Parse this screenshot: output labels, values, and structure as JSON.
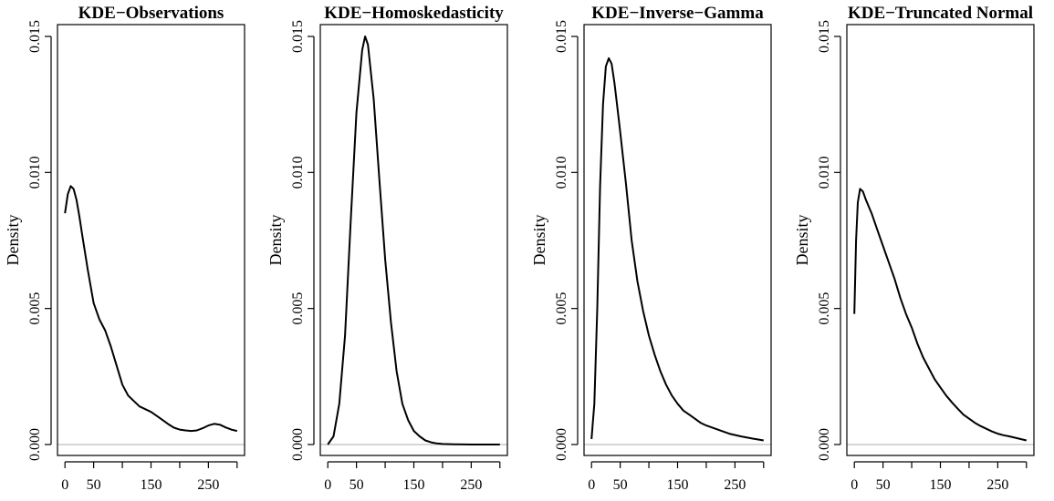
{
  "chart_data": [
    {
      "type": "line",
      "title": "KDE−Observations",
      "xlabel": "",
      "ylabel": "Density",
      "xlim": [
        0,
        300
      ],
      "ylim": [
        0,
        0.015
      ],
      "xticks": [
        0,
        50,
        150,
        250
      ],
      "xtick_labels": [
        "0",
        "50",
        "150",
        "250"
      ],
      "xtick_marks": [
        0,
        50,
        100,
        150,
        200,
        250,
        300
      ],
      "yticks": [
        0,
        0.005,
        0.01,
        0.015
      ],
      "ytick_labels": [
        "0.000",
        "0.005",
        "0.010",
        "0.015"
      ],
      "grid": false,
      "series": [
        {
          "x": [
            0,
            5,
            10,
            15,
            20,
            25,
            30,
            40,
            50,
            60,
            70,
            80,
            90,
            100,
            110,
            120,
            130,
            140,
            150,
            160,
            170,
            180,
            190,
            200,
            210,
            220,
            230,
            240,
            250,
            260,
            270,
            280,
            290,
            300
          ],
          "y": [
            0.0085,
            0.0092,
            0.0095,
            0.0094,
            0.009,
            0.0084,
            0.0077,
            0.0064,
            0.0052,
            0.0046,
            0.0042,
            0.0036,
            0.0029,
            0.0022,
            0.0018,
            0.0016,
            0.0014,
            0.0013,
            0.0012,
            0.00105,
            0.0009,
            0.00075,
            0.00062,
            0.00055,
            0.00052,
            0.0005,
            0.00052,
            0.0006,
            0.0007,
            0.00076,
            0.00073,
            0.00063,
            0.00055,
            0.0005
          ]
        }
      ]
    },
    {
      "type": "line",
      "title": "KDE−Homoskedasticity",
      "xlabel": "",
      "ylabel": "Density",
      "xlim": [
        0,
        300
      ],
      "ylim": [
        0,
        0.015
      ],
      "xticks": [
        0,
        50,
        150,
        250
      ],
      "xtick_labels": [
        "0",
        "50",
        "150",
        "250"
      ],
      "xtick_marks": [
        0,
        50,
        100,
        150,
        200,
        250,
        300
      ],
      "yticks": [
        0,
        0.005,
        0.01,
        0.015
      ],
      "ytick_labels": [
        "0.000",
        "0.005",
        "0.010",
        "0.015"
      ],
      "grid": false,
      "series": [
        {
          "x": [
            0,
            10,
            20,
            30,
            40,
            50,
            60,
            65,
            70,
            80,
            90,
            100,
            110,
            120,
            130,
            140,
            150,
            160,
            170,
            180,
            190,
            200,
            220,
            250,
            300
          ],
          "y": [
            0.0,
            0.0003,
            0.0015,
            0.004,
            0.0082,
            0.0122,
            0.0145,
            0.015,
            0.0147,
            0.0127,
            0.0097,
            0.0068,
            0.0045,
            0.0027,
            0.0015,
            0.0009,
            0.0005,
            0.0003,
            0.00015,
            8e-05,
            4e-05,
            2e-05,
            1e-05,
            0.0,
            0.0
          ]
        }
      ]
    },
    {
      "type": "line",
      "title": "KDE−Inverse−Gamma",
      "xlabel": "",
      "ylabel": "Density",
      "xlim": [
        0,
        300
      ],
      "ylim": [
        0,
        0.015
      ],
      "xticks": [
        0,
        50,
        150,
        250
      ],
      "xtick_labels": [
        "0",
        "50",
        "150",
        "250"
      ],
      "xtick_marks": [
        0,
        50,
        100,
        150,
        200,
        250,
        300
      ],
      "yticks": [
        0,
        0.005,
        0.01,
        0.015
      ],
      "ytick_labels": [
        "0.000",
        "0.005",
        "0.010",
        "0.015"
      ],
      "grid": false,
      "series": [
        {
          "x": [
            0,
            5,
            10,
            15,
            20,
            25,
            30,
            35,
            40,
            45,
            50,
            60,
            70,
            80,
            90,
            100,
            110,
            120,
            130,
            140,
            150,
            160,
            170,
            180,
            190,
            200,
            220,
            240,
            260,
            280,
            300
          ],
          "y": [
            0.0002,
            0.0015,
            0.005,
            0.0095,
            0.0125,
            0.0139,
            0.0142,
            0.014,
            0.0133,
            0.0124,
            0.0115,
            0.0096,
            0.0075,
            0.006,
            0.0049,
            0.004,
            0.0033,
            0.0027,
            0.0022,
            0.0018,
            0.0015,
            0.00125,
            0.0011,
            0.00095,
            0.0008,
            0.0007,
            0.00055,
            0.0004,
            0.0003,
            0.00022,
            0.00015
          ]
        }
      ]
    },
    {
      "type": "line",
      "title": "KDE−Truncated Normal",
      "xlabel": "",
      "ylabel": "Density",
      "xlim": [
        0,
        300
      ],
      "ylim": [
        0,
        0.015
      ],
      "xticks": [
        0,
        50,
        150,
        250
      ],
      "xtick_labels": [
        "0",
        "50",
        "150",
        "250"
      ],
      "xtick_marks": [
        0,
        50,
        100,
        150,
        200,
        250,
        300
      ],
      "yticks": [
        0,
        0.005,
        0.01,
        0.015
      ],
      "ytick_labels": [
        "0.000",
        "0.005",
        "0.010",
        "0.015"
      ],
      "grid": false,
      "series": [
        {
          "x": [
            0,
            3,
            6,
            10,
            15,
            20,
            30,
            40,
            50,
            60,
            70,
            80,
            90,
            100,
            110,
            120,
            130,
            140,
            150,
            160,
            170,
            180,
            190,
            200,
            210,
            220,
            230,
            240,
            250,
            260,
            270,
            280,
            290,
            300
          ],
          "y": [
            0.0048,
            0.0075,
            0.0089,
            0.0094,
            0.0093,
            0.009,
            0.0085,
            0.0079,
            0.0073,
            0.0067,
            0.0061,
            0.0054,
            0.0048,
            0.0043,
            0.0037,
            0.0032,
            0.0028,
            0.0024,
            0.0021,
            0.0018,
            0.00155,
            0.00132,
            0.0011,
            0.00095,
            0.0008,
            0.00068,
            0.00058,
            0.00048,
            0.0004,
            0.00034,
            0.0003,
            0.00025,
            0.0002,
            0.00015
          ]
        }
      ]
    }
  ]
}
